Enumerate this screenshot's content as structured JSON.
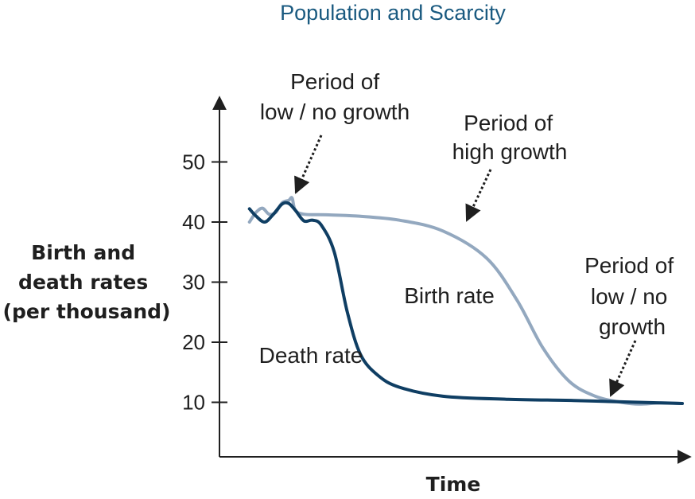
{
  "chart_data": {
    "type": "line",
    "title": "Population and Scarcity",
    "xlabel": "Time",
    "ylabel": [
      "Birth and",
      "death rates",
      "(per thousand)"
    ],
    "ylim": [
      0,
      60
    ],
    "yticks": [
      10,
      20,
      30,
      40,
      50
    ],
    "grid": false,
    "series": [
      {
        "name": "Birth rate",
        "color": "#93a8bf",
        "points": [
          [
            0.5,
            40
          ],
          [
            2,
            41.6
          ],
          [
            3.5,
            42.3
          ],
          [
            5,
            41.3
          ],
          [
            6.5,
            41.6
          ],
          [
            8,
            43.2
          ],
          [
            9.5,
            43.6
          ],
          [
            10.3,
            44
          ],
          [
            11,
            42
          ],
          [
            13,
            41.3
          ],
          [
            18,
            41.2
          ],
          [
            25,
            41
          ],
          [
            35,
            40.3
          ],
          [
            45,
            38.5
          ],
          [
            55,
            34
          ],
          [
            62,
            27
          ],
          [
            68,
            19
          ],
          [
            74,
            13.5
          ],
          [
            80,
            11
          ],
          [
            86,
            10
          ],
          [
            90,
            9.7
          ],
          [
            95,
            9.9
          ],
          [
            100,
            9.8
          ]
        ]
      },
      {
        "name": "Death rate",
        "color": "#0f3e63",
        "points": [
          [
            0.5,
            42.2
          ],
          [
            2,
            41
          ],
          [
            4,
            40
          ],
          [
            6,
            41.3
          ],
          [
            8,
            43
          ],
          [
            9.5,
            43.1
          ],
          [
            11,
            42
          ],
          [
            13,
            40.2
          ],
          [
            15,
            40.3
          ],
          [
            17,
            39.5
          ],
          [
            20,
            35
          ],
          [
            23,
            25
          ],
          [
            26,
            18
          ],
          [
            30,
            14.5
          ],
          [
            35,
            12.5
          ],
          [
            45,
            11
          ],
          [
            60,
            10.5
          ],
          [
            75,
            10.3
          ],
          [
            90,
            10
          ],
          [
            100,
            9.8
          ]
        ]
      }
    ],
    "series_labels": [
      "Birth rate",
      "Death rate"
    ],
    "annotations": [
      {
        "lines": [
          "Period of",
          "low / no growth"
        ],
        "target": [
          10,
          43.4
        ]
      },
      {
        "lines": [
          "Period of",
          "high growth"
        ],
        "target": [
          54,
          39.2
        ]
      },
      {
        "lines": [
          "Period of",
          "low / no",
          "growth"
        ],
        "target": [
          85,
          10.2
        ]
      }
    ]
  }
}
